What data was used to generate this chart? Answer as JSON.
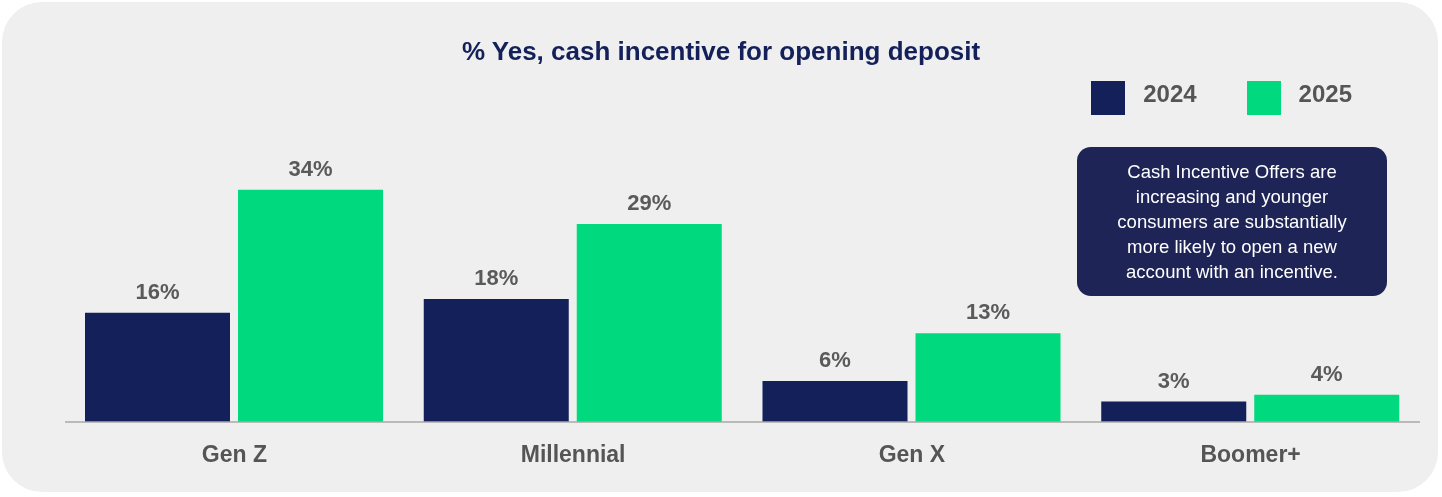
{
  "chart_data": {
    "type": "bar",
    "title": "% Yes, cash incentive for opening deposit",
    "categories": [
      "Gen Z",
      "Millennial",
      "Gen X",
      "Boomer+"
    ],
    "series": [
      {
        "name": "2024",
        "color": "#13205a",
        "values": [
          16,
          18,
          6,
          3
        ],
        "value_labels": [
          "16%",
          "18%",
          "6%",
          "3%"
        ]
      },
      {
        "name": "2025",
        "color": "#00d97e",
        "values": [
          34,
          29,
          13,
          4
        ],
        "value_labels": [
          "34%",
          "29%",
          "13%",
          "4%"
        ]
      }
    ],
    "legend": "top right",
    "grid": false,
    "annotations": [
      "Cash Incentive Offers are increasing and younger consumers are substantially more likely to open a new account with an incentive."
    ]
  }
}
